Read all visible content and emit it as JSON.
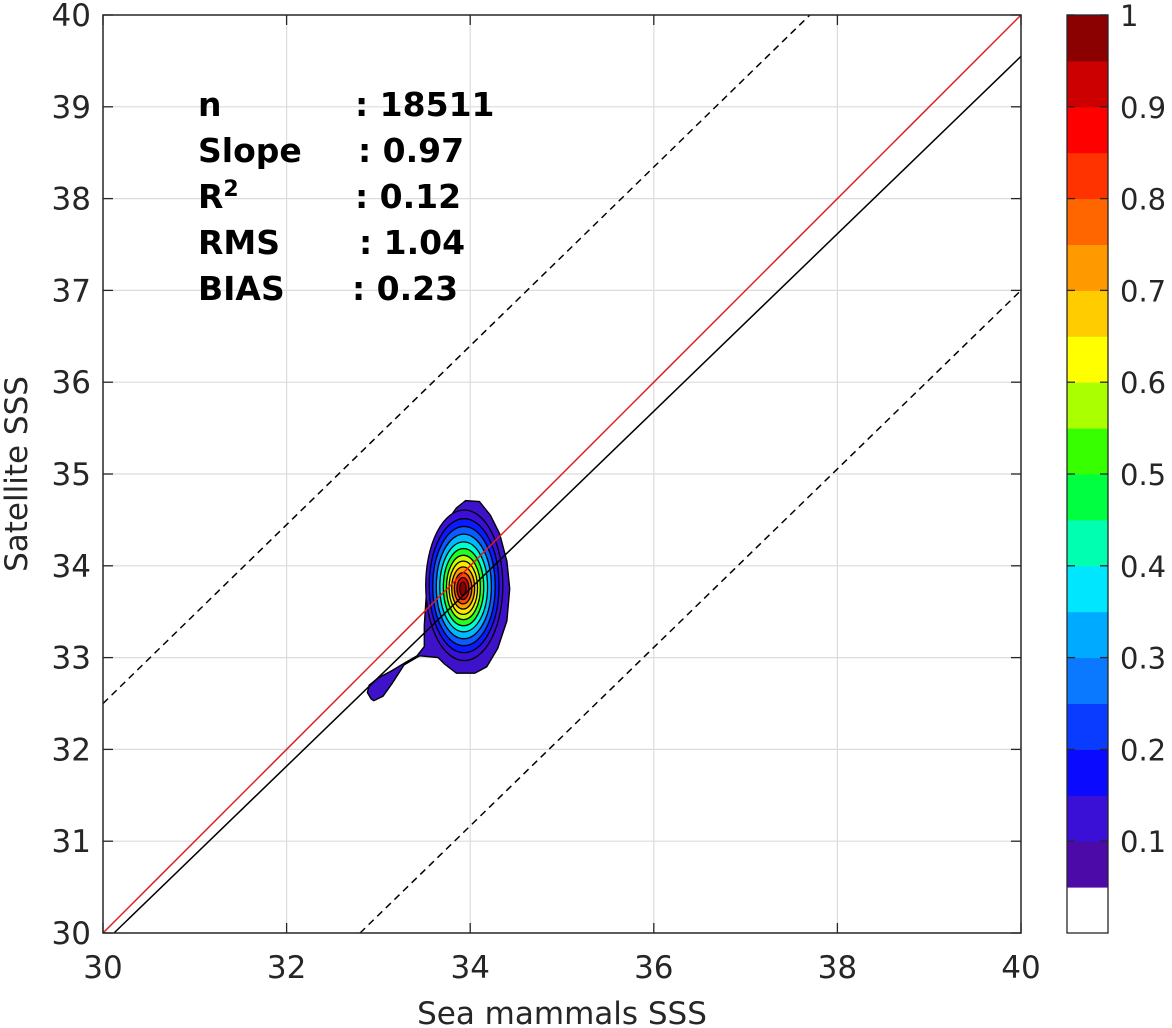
{
  "chart_data": {
    "type": "contour",
    "xlabel": "Sea mammals SSS",
    "ylabel": "Satellite SSS",
    "xlim": [
      30,
      40
    ],
    "ylim": [
      30,
      40
    ],
    "xticks": [
      30,
      32,
      34,
      36,
      38,
      40
    ],
    "yticks": [
      30,
      31,
      32,
      33,
      34,
      35,
      36,
      37,
      38,
      39,
      40
    ],
    "grid": true,
    "stats": [
      {
        "label": "n",
        "value": ": 18511"
      },
      {
        "label": "Slope",
        "value": ": 0.97"
      },
      {
        "label": "R",
        "sup": "2",
        "value": ": 0.12"
      },
      {
        "label": "RMS",
        "value": ": 1.04"
      },
      {
        "label": "BIAS",
        "value": ": 0.23"
      }
    ],
    "lines": [
      {
        "name": "identity",
        "color": "#e41a1c",
        "style": "solid",
        "points": [
          [
            30,
            30
          ],
          [
            40,
            40
          ]
        ]
      },
      {
        "name": "fit",
        "color": "#000000",
        "style": "solid",
        "points": [
          [
            30.12,
            30
          ],
          [
            40,
            39.55
          ]
        ]
      },
      {
        "name": "upper-bound",
        "color": "#000000",
        "style": "dashed",
        "points": [
          [
            30,
            32.5
          ],
          [
            37.7,
            40
          ]
        ]
      },
      {
        "name": "lower-bound",
        "color": "#000000",
        "style": "dashed",
        "points": [
          [
            32.8,
            30
          ],
          [
            40,
            37
          ]
        ]
      }
    ],
    "density_peak": {
      "x": 33.92,
      "y": 33.75,
      "value": 1.0
    },
    "outer_contour": [
      [
        32.92,
        32.55
      ],
      [
        32.88,
        32.62
      ],
      [
        32.9,
        32.7
      ],
      [
        33.0,
        32.78
      ],
      [
        33.15,
        32.86
      ],
      [
        33.3,
        32.95
      ],
      [
        33.42,
        33.02
      ],
      [
        33.5,
        33.12
      ],
      [
        33.5,
        33.35
      ],
      [
        33.52,
        33.65
      ],
      [
        33.55,
        33.95
      ],
      [
        33.62,
        34.2
      ],
      [
        33.72,
        34.45
      ],
      [
        33.85,
        34.63
      ],
      [
        33.95,
        34.71
      ],
      [
        34.1,
        34.7
      ],
      [
        34.22,
        34.55
      ],
      [
        34.32,
        34.35
      ],
      [
        34.4,
        34.05
      ],
      [
        34.43,
        33.75
      ],
      [
        34.4,
        33.4
      ],
      [
        34.3,
        33.1
      ],
      [
        34.18,
        32.9
      ],
      [
        34.05,
        32.83
      ],
      [
        33.85,
        32.83
      ],
      [
        33.72,
        32.93
      ],
      [
        33.65,
        33.0
      ],
      [
        33.45,
        33.02
      ],
      [
        33.28,
        32.92
      ],
      [
        33.15,
        32.72
      ],
      [
        33.05,
        32.58
      ],
      [
        32.95,
        32.53
      ]
    ],
    "contour_levels": [
      {
        "level": 0.1,
        "color": "#3a0fd6",
        "rx": 0.42,
        "ry": 0.82
      },
      {
        "level": 0.15,
        "color": "#0a1cff",
        "rx": 0.38,
        "ry": 0.73
      },
      {
        "level": 0.2,
        "color": "#0a5cff",
        "rx": 0.34,
        "ry": 0.65
      },
      {
        "level": 0.3,
        "color": "#00b8ff",
        "rx": 0.3,
        "ry": 0.57
      },
      {
        "level": 0.4,
        "color": "#00ffd0",
        "rx": 0.26,
        "ry": 0.49
      },
      {
        "level": 0.5,
        "color": "#22ff22",
        "rx": 0.22,
        "ry": 0.42
      },
      {
        "level": 0.6,
        "color": "#c8ff00",
        "rx": 0.185,
        "ry": 0.35
      },
      {
        "level": 0.65,
        "color": "#ffe800",
        "rx": 0.155,
        "ry": 0.29
      },
      {
        "level": 0.75,
        "color": "#ff9a00",
        "rx": 0.125,
        "ry": 0.23
      },
      {
        "level": 0.8,
        "color": "#ff4a00",
        "rx": 0.095,
        "ry": 0.17
      },
      {
        "level": 0.9,
        "color": "#d60000",
        "rx": 0.065,
        "ry": 0.12
      },
      {
        "level": 1.0,
        "color": "#8a0000",
        "rx": 0.035,
        "ry": 0.07
      }
    ],
    "colorbar": {
      "ticks": [
        "1",
        "0.9",
        "0.8",
        "0.7",
        "0.6",
        "0.5",
        "0.4",
        "0.3",
        "0.2",
        "0.1"
      ],
      "tick_values": [
        1,
        0.9,
        0.8,
        0.7,
        0.6,
        0.5,
        0.4,
        0.3,
        0.2,
        0.1
      ],
      "colors": [
        "#ffffff",
        "#4c0aa8",
        "#3a0fd6",
        "#0a0aff",
        "#0a3cff",
        "#0a78ff",
        "#00aaff",
        "#00e6ff",
        "#00ffb0",
        "#00ff40",
        "#38ff00",
        "#aaff00",
        "#ffff00",
        "#ffcc00",
        "#ff9900",
        "#ff6600",
        "#ff3300",
        "#ff0000",
        "#cc0000",
        "#8b0000"
      ]
    }
  }
}
